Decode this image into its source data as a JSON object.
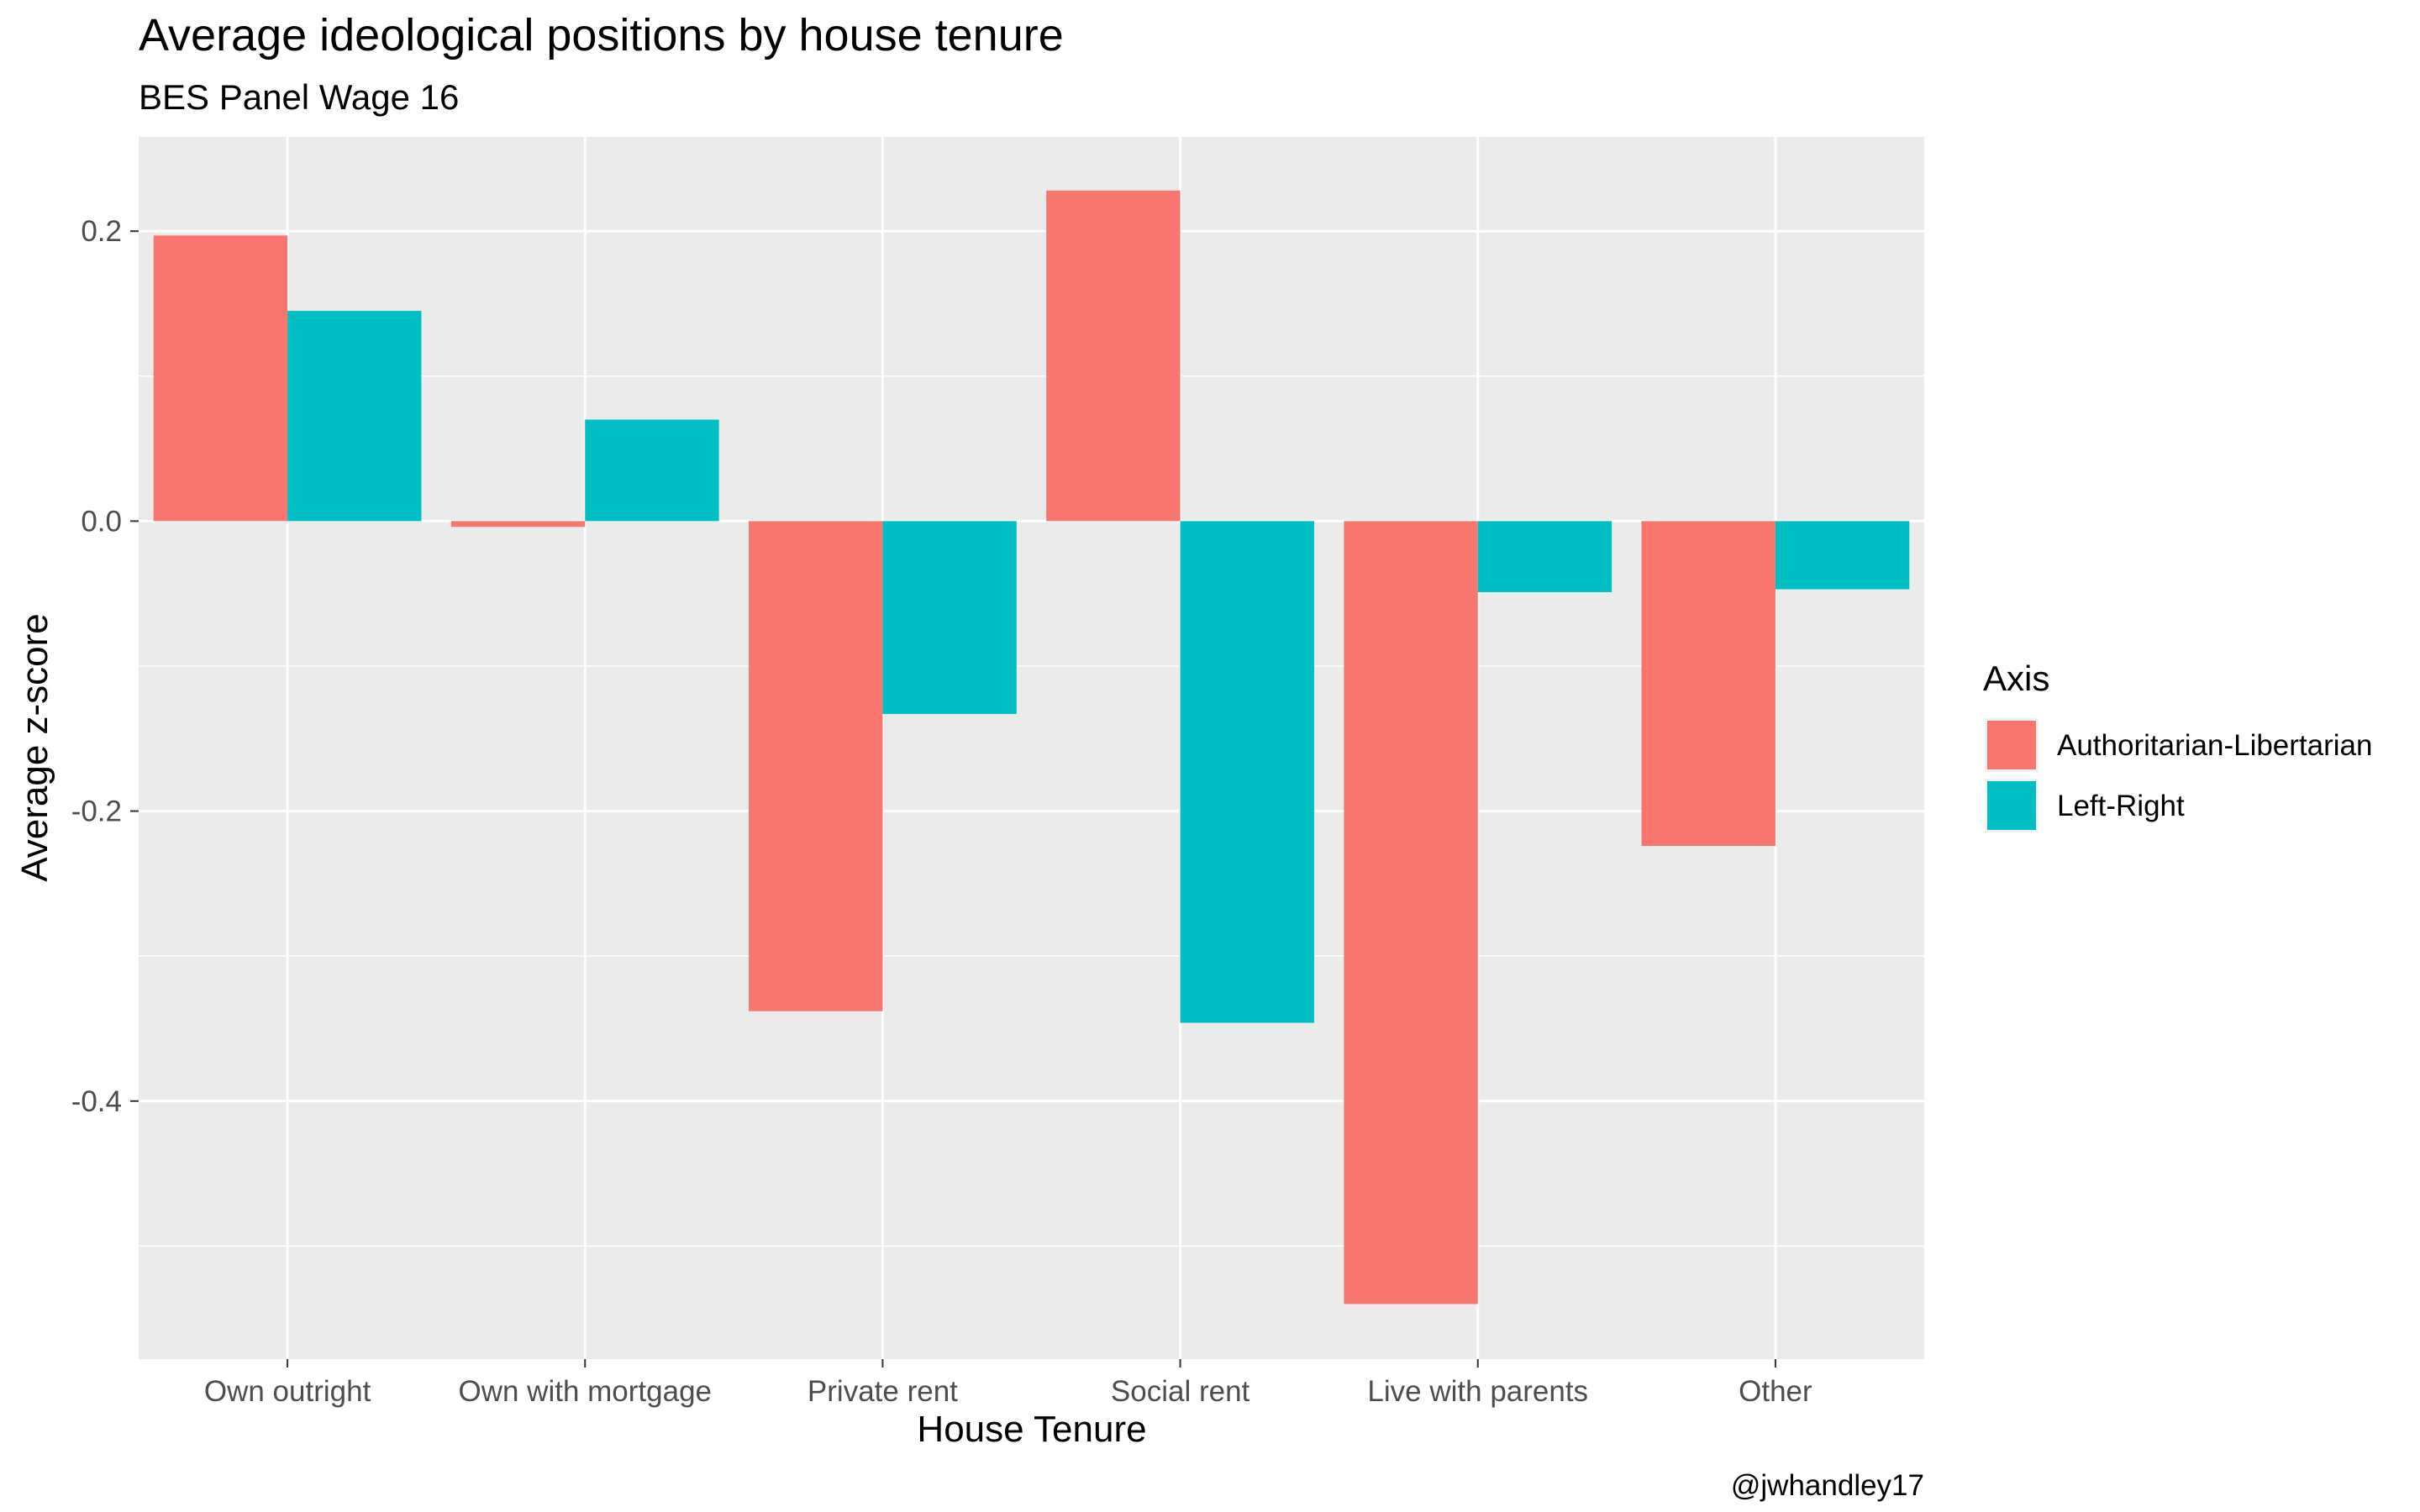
{
  "chart_data": {
    "type": "bar",
    "title": "Average ideological positions by house tenure",
    "subtitle": "BES Panel Wage 16",
    "xlabel": "House Tenure",
    "ylabel": "Average z-score",
    "caption": "@jwhandley17",
    "categories": [
      "Own outright",
      "Own with mortgage",
      "Private rent",
      "Social rent",
      "Live with parents",
      "Other"
    ],
    "series": [
      {
        "name": "Authoritarian-Libertarian",
        "color": "#F8766D",
        "values": [
          0.197,
          -0.004,
          -0.338,
          0.228,
          -0.54,
          -0.224
        ]
      },
      {
        "name": "Left-Right",
        "color": "#00BFC4",
        "values": [
          0.145,
          0.07,
          -0.133,
          -0.346,
          -0.049,
          -0.047
        ]
      }
    ],
    "ylim": [
      -0.578,
      0.265
    ],
    "yticks": [
      0.2,
      0.0,
      -0.2,
      -0.4
    ],
    "ytick_labels": [
      "0.2",
      "0.0",
      "-0.2",
      "-0.4"
    ],
    "grid": true,
    "legend_title": "Axis",
    "legend_position": "right",
    "panel_background": "#EBEBEB",
    "gridline_color": "#FFFFFF"
  }
}
